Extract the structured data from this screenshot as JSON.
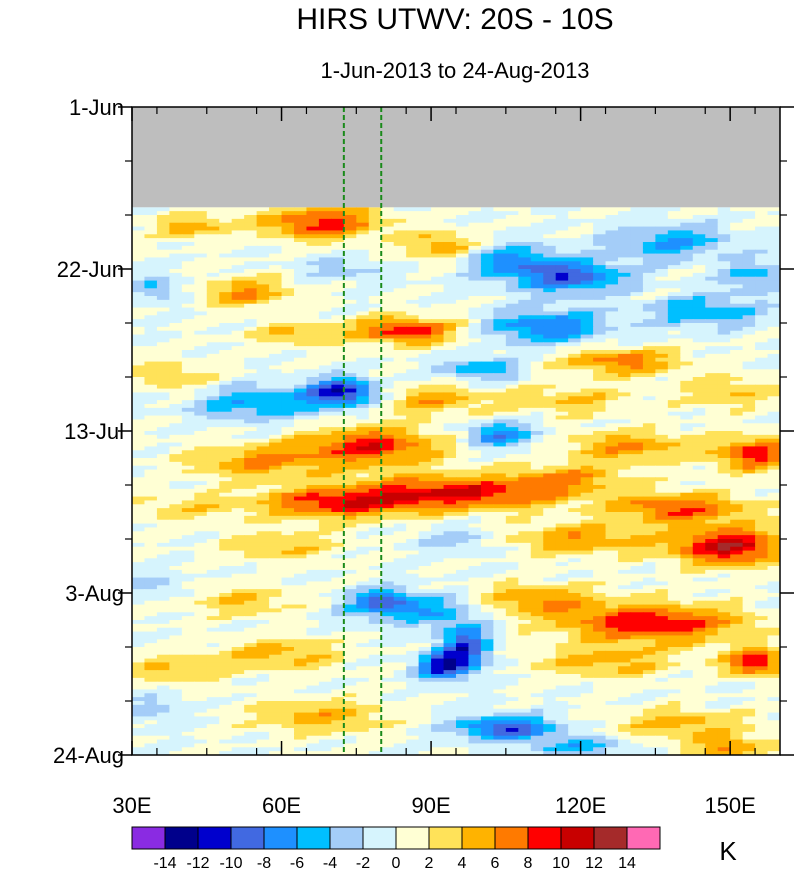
{
  "chart_data": {
    "type": "heatmap",
    "title": "HIRS UTWV: 20S - 10S",
    "subtitle": "1-Jun-2013 to 24-Aug-2013",
    "x_axis": {
      "range": [
        30,
        160
      ],
      "ticks": [
        30,
        60,
        90,
        120,
        150
      ],
      "tick_labels": [
        "30E",
        "60E",
        "90E",
        "120E",
        "150E"
      ],
      "unit": "degrees east longitude"
    },
    "y_axis": {
      "range_days": [
        0,
        84
      ],
      "direction": "top-to-bottom",
      "ticks": [
        0,
        21,
        42,
        63,
        84
      ],
      "tick_labels": [
        "1-Jun",
        "22-Jun",
        "13-Jul",
        "3-Aug",
        "24-Aug"
      ]
    },
    "missing_data": {
      "start_day": 0,
      "end_day": 13,
      "color": "#bebebe"
    },
    "reference_lines": [
      {
        "longitude": 72.5,
        "style": "dashed",
        "color": "#1a8a1a"
      },
      {
        "longitude": 80,
        "style": "dashed",
        "color": "#1a8a1a"
      }
    ],
    "colorbar": {
      "unit": "K",
      "labels": [
        "-14",
        "-12",
        "-10",
        "-8",
        "-6",
        "-4",
        "-2",
        "0",
        "2",
        "4",
        "6",
        "8",
        "10",
        "12",
        "14"
      ],
      "bin_colors": [
        "#8a2be2",
        "#00008b",
        "#0000cd",
        "#4169e1",
        "#1e90ff",
        "#00bfff",
        "#a4cdf8",
        "#d6f4fd",
        "#ffffd4",
        "#ffe259",
        "#ffb300",
        "#ff7a00",
        "#ff0000",
        "#c80000",
        "#a52a2a",
        "#ff69b4"
      ]
    },
    "anomaly_blobs": [
      {
        "lon": 68,
        "day": 15,
        "value": 9,
        "w": 12,
        "h": 2.2
      },
      {
        "lon": 42,
        "day": 15.5,
        "value": 5,
        "w": 8,
        "h": 1.6
      },
      {
        "lon": 92,
        "day": 18,
        "value": 6,
        "w": 7,
        "h": 2
      },
      {
        "lon": 106,
        "day": 20,
        "value": -6,
        "w": 10,
        "h": 2.2
      },
      {
        "lon": 118,
        "day": 22,
        "value": -9,
        "w": 11,
        "h": 2.2
      },
      {
        "lon": 138,
        "day": 17.5,
        "value": -6,
        "w": 12,
        "h": 2.2
      },
      {
        "lon": 155,
        "day": 22,
        "value": -5,
        "w": 7,
        "h": 2
      },
      {
        "lon": 53,
        "day": 24,
        "value": 6,
        "w": 9,
        "h": 2
      },
      {
        "lon": 72,
        "day": 21,
        "value": -3,
        "w": 9,
        "h": 1.5
      },
      {
        "lon": 35,
        "day": 23.5,
        "value": -4,
        "w": 6,
        "h": 1.8
      },
      {
        "lon": 85,
        "day": 29,
        "value": 9,
        "w": 11,
        "h": 1.8
      },
      {
        "lon": 113,
        "day": 28.5,
        "value": -8,
        "w": 12,
        "h": 2.2
      },
      {
        "lon": 145,
        "day": 26.5,
        "value": -6,
        "w": 11,
        "h": 2
      },
      {
        "lon": 62,
        "day": 29.5,
        "value": 4,
        "w": 9,
        "h": 1.6
      },
      {
        "lon": 128,
        "day": 33,
        "value": 7,
        "w": 12,
        "h": 1.8
      },
      {
        "lon": 100,
        "day": 34,
        "value": -6,
        "w": 8,
        "h": 1.5
      },
      {
        "lon": 72,
        "day": 37,
        "value": -12,
        "w": 7,
        "h": 1.8
      },
      {
        "lon": 55,
        "day": 38.5,
        "value": -6,
        "w": 13,
        "h": 2.2
      },
      {
        "lon": 90,
        "day": 38,
        "value": 5,
        "w": 12,
        "h": 2
      },
      {
        "lon": 118,
        "day": 38,
        "value": 4,
        "w": 12,
        "h": 2
      },
      {
        "lon": 150,
        "day": 37,
        "value": 4,
        "w": 10,
        "h": 2.2
      },
      {
        "lon": 38,
        "day": 35,
        "value": 4,
        "w": 8,
        "h": 2
      },
      {
        "lon": 78,
        "day": 44,
        "value": 9,
        "w": 14,
        "h": 2.5
      },
      {
        "lon": 55,
        "day": 46,
        "value": 6,
        "w": 14,
        "h": 2.2
      },
      {
        "lon": 104,
        "day": 42.5,
        "value": -8,
        "w": 7,
        "h": 1.6
      },
      {
        "lon": 130,
        "day": 44,
        "value": 6,
        "w": 13,
        "h": 2
      },
      {
        "lon": 155,
        "day": 45,
        "value": 9,
        "w": 8,
        "h": 2.2
      },
      {
        "lon": 95,
        "day": 50,
        "value": 10,
        "w": 22,
        "h": 2.2
      },
      {
        "lon": 70,
        "day": 51.5,
        "value": 8,
        "w": 16,
        "h": 2
      },
      {
        "lon": 140,
        "day": 52,
        "value": 8,
        "w": 14,
        "h": 2
      },
      {
        "lon": 40,
        "day": 52,
        "value": 3,
        "w": 10,
        "h": 2
      },
      {
        "lon": 118,
        "day": 48,
        "value": 5,
        "w": 12,
        "h": 1.8
      },
      {
        "lon": 150,
        "day": 57,
        "value": 11,
        "w": 12,
        "h": 2.5
      },
      {
        "lon": 120,
        "day": 56,
        "value": 6,
        "w": 14,
        "h": 2
      },
      {
        "lon": 95,
        "day": 56,
        "value": -3,
        "w": 8,
        "h": 1.6
      },
      {
        "lon": 60,
        "day": 57,
        "value": 4,
        "w": 12,
        "h": 2
      },
      {
        "lon": 88,
        "day": 65,
        "value": -6,
        "w": 14,
        "h": 2.2
      },
      {
        "lon": 80,
        "day": 64,
        "value": -6,
        "w": 6,
        "h": 1.5
      },
      {
        "lon": 135,
        "day": 67,
        "value": 10,
        "w": 18,
        "h": 2.5
      },
      {
        "lon": 110,
        "day": 64,
        "value": 6,
        "w": 14,
        "h": 2.2
      },
      {
        "lon": 52,
        "day": 64,
        "value": 4,
        "w": 12,
        "h": 2
      },
      {
        "lon": 36,
        "day": 62,
        "value": -3,
        "w": 6,
        "h": 1.6
      },
      {
        "lon": 97,
        "day": 70,
        "value": -10,
        "w": 5,
        "h": 3
      },
      {
        "lon": 92,
        "day": 72.5,
        "value": -10,
        "w": 5,
        "h": 1.8
      },
      {
        "lon": 125,
        "day": 72,
        "value": 5,
        "w": 14,
        "h": 2
      },
      {
        "lon": 155,
        "day": 72,
        "value": 10,
        "w": 6,
        "h": 1.8
      },
      {
        "lon": 60,
        "day": 71,
        "value": 5,
        "w": 12,
        "h": 2.2
      },
      {
        "lon": 38,
        "day": 73,
        "value": 4,
        "w": 10,
        "h": 2
      },
      {
        "lon": 105,
        "day": 80.5,
        "value": -10,
        "w": 10,
        "h": 1.6
      },
      {
        "lon": 140,
        "day": 80,
        "value": 5,
        "w": 14,
        "h": 2
      },
      {
        "lon": 68,
        "day": 79,
        "value": 5,
        "w": 14,
        "h": 2.2
      },
      {
        "lon": 35,
        "day": 78,
        "value": -3,
        "w": 6,
        "h": 2
      },
      {
        "lon": 120,
        "day": 83,
        "value": -5,
        "w": 10,
        "h": 1.4
      },
      {
        "lon": 150,
        "day": 83,
        "value": 6,
        "w": 8,
        "h": 1.4
      }
    ]
  }
}
